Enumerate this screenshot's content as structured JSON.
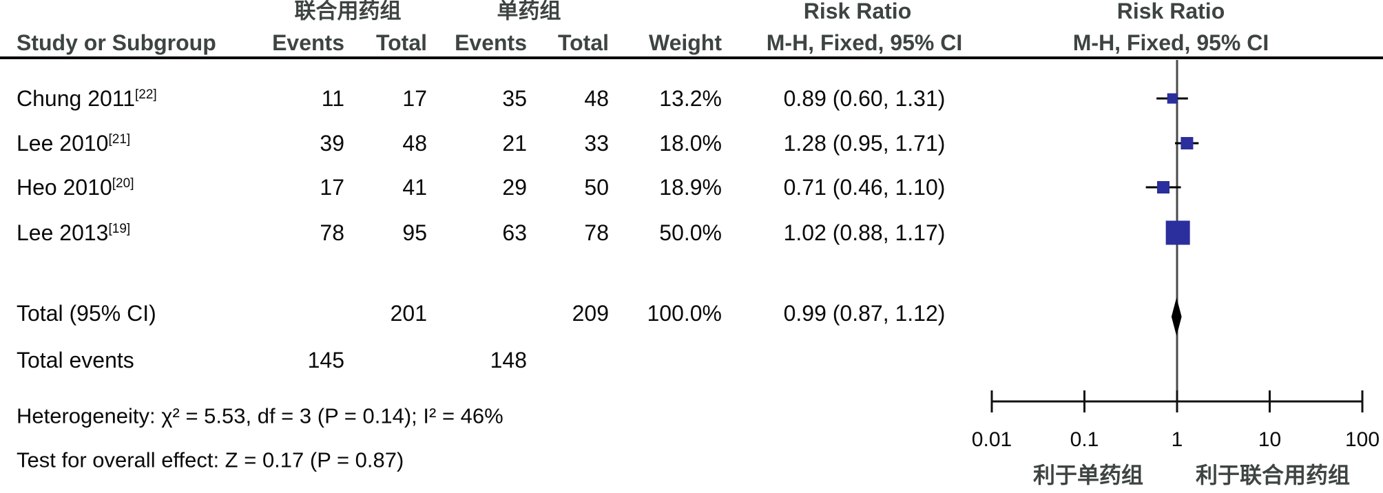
{
  "header": {
    "group1_label": "联合用药组",
    "group2_label": "单药组",
    "study_col": "Study or Subgroup",
    "events_col": "Events",
    "total_col": "Total",
    "events2_col": "Events",
    "total2_col": "Total",
    "weight_col": "Weight",
    "rr_text_col": {
      "line1": "Risk Ratio",
      "line2": "M-H, Fixed, 95% CI"
    },
    "rr_plot_col": {
      "line1": "Risk Ratio",
      "line2": "M-H, Fixed, 95% CI"
    }
  },
  "studies": [
    {
      "name": "Chung 2011",
      "ref": "[22]",
      "events1": "11",
      "total1": "17",
      "events2": "35",
      "total2": "48",
      "weight": "13.2%",
      "ci_text": "0.89 (0.60, 1.31)"
    },
    {
      "name": "Lee 2010",
      "ref": "[21]",
      "events1": "39",
      "total1": "48",
      "events2": "21",
      "total2": "33",
      "weight": "18.0%",
      "ci_text": "1.28 (0.95, 1.71)"
    },
    {
      "name": "Heo 2010",
      "ref": "[20]",
      "events1": "17",
      "total1": "41",
      "events2": "29",
      "total2": "50",
      "weight": "18.9%",
      "ci_text": "0.71 (0.46, 1.10)"
    },
    {
      "name": "Lee 2013",
      "ref": "[19]",
      "events1": "78",
      "total1": "95",
      "events2": "63",
      "total2": "78",
      "weight": "50.0%",
      "ci_text": "1.02 (0.88, 1.17)"
    }
  ],
  "totals": {
    "label": "Total (95% CI)",
    "total1": "201",
    "total2": "209",
    "weight": "100.0%",
    "ci_text": "0.99 (0.87, 1.12)",
    "events_label": "Total events",
    "events1": "145",
    "events2": "148"
  },
  "stats": {
    "heterogeneity": "Heterogeneity: χ² = 5.53, df = 3 (P = 0.14); I² = 46%",
    "overall_effect": "Test for overall effect: Z = 0.17 (P = 0.87)"
  },
  "footer": {
    "favors_left": "利于单药组",
    "favors_right": "利于联合用药组"
  },
  "chart_data": {
    "type": "scatter",
    "subtype": "forest-plot",
    "effect_measure": "Risk Ratio, M-H, Fixed, 95% CI",
    "axis": {
      "scale": "log",
      "min": 0.01,
      "max": 100,
      "ticks": [
        0.01,
        0.1,
        1,
        10,
        100
      ]
    },
    "studies": [
      {
        "name": "Chung 2011",
        "rr": 0.89,
        "ci_low": 0.6,
        "ci_high": 1.31,
        "weight_pct": 13.2
      },
      {
        "name": "Lee 2010",
        "rr": 1.28,
        "ci_low": 0.95,
        "ci_high": 1.71,
        "weight_pct": 18.0
      },
      {
        "name": "Heo 2010",
        "rr": 0.71,
        "ci_low": 0.46,
        "ci_high": 1.1,
        "weight_pct": 18.9
      },
      {
        "name": "Lee 2013",
        "rr": 1.02,
        "ci_low": 0.88,
        "ci_high": 1.17,
        "weight_pct": 50.0
      }
    ],
    "total": {
      "rr": 0.99,
      "ci_low": 0.87,
      "ci_high": 1.12
    },
    "colors": {
      "square": "#2B2E9D",
      "diamond": "#000000",
      "ci_line": "#000000",
      "axis_line": "#111111",
      "center_line": "#4a4a4a"
    }
  }
}
